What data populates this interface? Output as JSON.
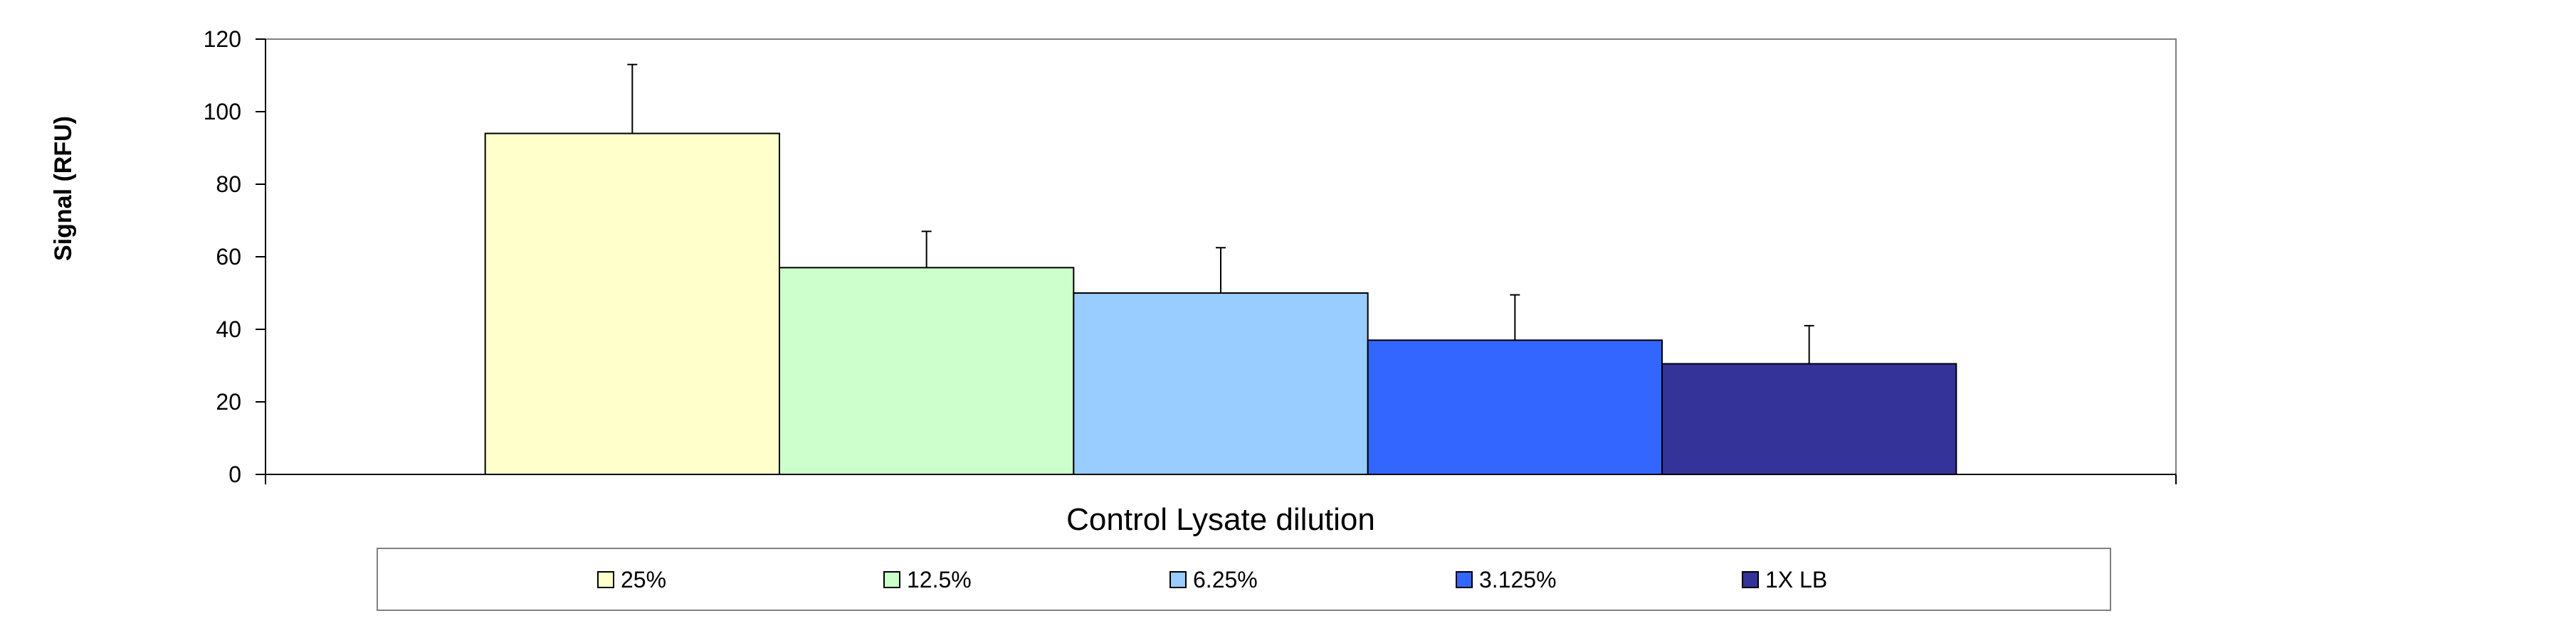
{
  "chart_data": {
    "type": "bar",
    "title": "",
    "xlabel": "Control Lysate dilution",
    "ylabel": "Signal (RFU)",
    "ylim": [
      0,
      120
    ],
    "yticks": [
      0,
      20,
      40,
      60,
      80,
      100,
      120
    ],
    "grid": false,
    "legend_position": "bottom",
    "series": [
      {
        "name": "25%",
        "value": 94,
        "error": 19,
        "color": "#FFFFCC"
      },
      {
        "name": "12.5%",
        "value": 57,
        "error": 10,
        "color": "#CCFFCC"
      },
      {
        "name": "6.25%",
        "value": 50,
        "error": 12.5,
        "color": "#99CCFF"
      },
      {
        "name": "3.125%",
        "value": 37,
        "error": 12.5,
        "color": "#3366FF"
      },
      {
        "name": "1X LB",
        "value": 30.5,
        "error": 10.5,
        "color": "#333399"
      }
    ]
  }
}
